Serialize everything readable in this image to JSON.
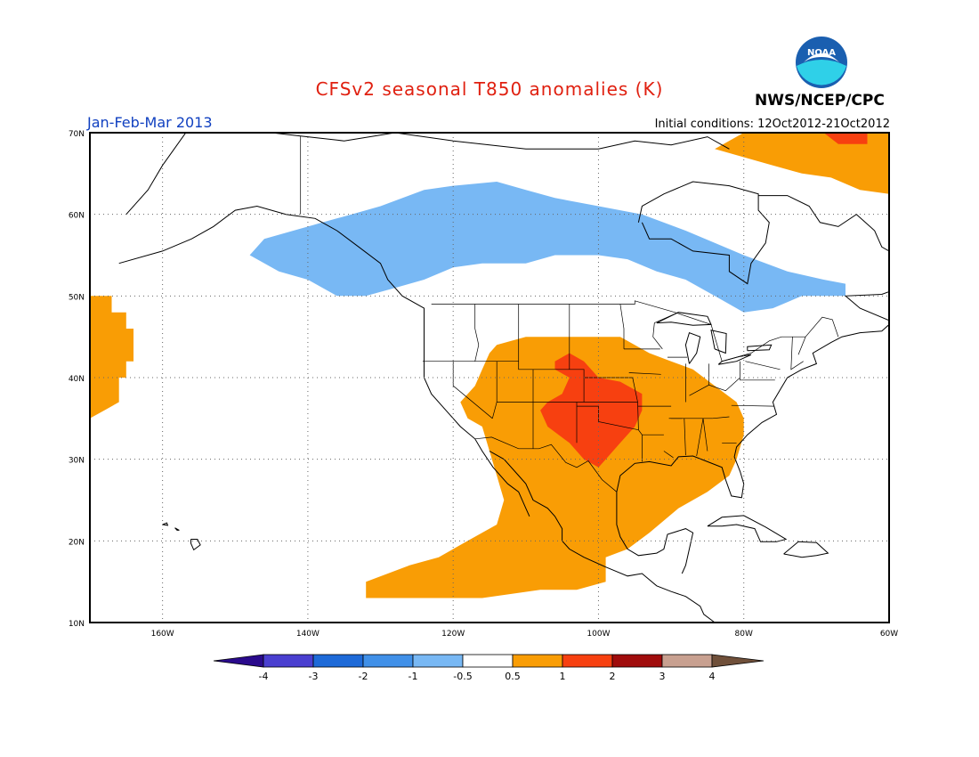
{
  "title": "CFSv2 seasonal T850 anomalies (K)",
  "period": "Jan-Feb-Mar 2013",
  "initial_conditions": "Initial conditions: 12Oct2012-21Oct2012",
  "agency": "NWS/NCEP/CPC",
  "logo_text": "NOAA",
  "colors": {
    "title": "#e02010",
    "period": "#1040c0",
    "lt_m4": "#2a0a8c",
    "m4_m3": "#4a3fd0",
    "m3_m2": "#1e6ad8",
    "m2_m1": "#4090e8",
    "m1_m05": "#78b8f4",
    "neutral": "#ffffff",
    "p05_p1": "#f99d05",
    "p1_p2": "#f74010",
    "p2_p3": "#a00c0c",
    "p3_p4": "#c8a090",
    "gt_p4": "#70503a"
  },
  "map": {
    "lon_range": [
      -170,
      -60
    ],
    "lat_range": [
      10,
      70
    ],
    "lat_ticks": [
      "70N",
      "60N",
      "50N",
      "40N",
      "30N",
      "20N",
      "10N"
    ],
    "lon_ticks": [
      "160W",
      "140W",
      "120W",
      "100W",
      "80W",
      "60W"
    ]
  },
  "colorbar": {
    "labels": [
      "-4",
      "-3",
      "-2",
      "-1",
      "-0.5",
      "0.5",
      "1",
      "2",
      "3",
      "4"
    ]
  },
  "anomaly_regions": [
    {
      "name": "Canada cold anomaly",
      "class": "-1 to -0.5",
      "color": "#78b8f4",
      "outline": [
        [
          -148,
          55
        ],
        [
          -146,
          57
        ],
        [
          -142,
          58
        ],
        [
          -138,
          59
        ],
        [
          -134,
          60
        ],
        [
          -130,
          61
        ],
        [
          -124,
          63
        ],
        [
          -120,
          63.5
        ],
        [
          -114,
          64
        ],
        [
          -110,
          63
        ],
        [
          -106,
          62
        ],
        [
          -100,
          61
        ],
        [
          -94,
          60
        ],
        [
          -88,
          58
        ],
        [
          -84,
          56.5
        ],
        [
          -80,
          55
        ],
        [
          -74,
          53
        ],
        [
          -69,
          52
        ],
        [
          -66,
          51.5
        ],
        [
          -66,
          50
        ],
        [
          -72,
          50
        ],
        [
          -76,
          48.5
        ],
        [
          -80,
          48
        ],
        [
          -84,
          50
        ],
        [
          -88,
          52
        ],
        [
          -92,
          53
        ],
        [
          -96,
          54.5
        ],
        [
          -100,
          55
        ],
        [
          -106,
          55
        ],
        [
          -110,
          54
        ],
        [
          -116,
          54
        ],
        [
          -120,
          53.5
        ],
        [
          -124,
          52
        ],
        [
          -128,
          51
        ],
        [
          -132,
          50
        ],
        [
          -136,
          50
        ],
        [
          -140,
          52
        ],
        [
          -144,
          53
        ]
      ]
    },
    {
      "name": "Pacific warm anomaly",
      "class": "0.5 to 1",
      "color": "#f99d05",
      "outline": [
        [
          -170,
          50
        ],
        [
          -167,
          50
        ],
        [
          -167,
          48
        ],
        [
          -165,
          48
        ],
        [
          -165,
          46
        ],
        [
          -164,
          46
        ],
        [
          -164,
          42
        ],
        [
          -165,
          42
        ],
        [
          -165,
          40
        ],
        [
          -166,
          40
        ],
        [
          -166,
          37
        ],
        [
          -168,
          36
        ],
        [
          -170,
          35
        ]
      ]
    },
    {
      "name": "Arctic Greenland warm anomaly",
      "class": "0.5 to 1",
      "color": "#f99d05",
      "outline": [
        [
          -80,
          70
        ],
        [
          -60,
          70
        ],
        [
          -60,
          62.5
        ],
        [
          -64,
          63
        ],
        [
          -68,
          64.5
        ],
        [
          -72,
          65
        ],
        [
          -76,
          66
        ],
        [
          -80,
          67
        ],
        [
          -84,
          68
        ]
      ]
    },
    {
      "name": "Greenland strong warm anomaly",
      "class": "1 to 2",
      "color": "#f74010",
      "outline": [
        [
          -69,
          70
        ],
        [
          -63,
          70
        ],
        [
          -63,
          68.6
        ],
        [
          -67,
          68.6
        ]
      ]
    },
    {
      "name": "US Mexico warm anomaly",
      "class": "0.5 to 1",
      "color": "#f99d05",
      "outline": [
        [
          -114,
          44
        ],
        [
          -110,
          45
        ],
        [
          -104,
          45
        ],
        [
          -97,
          45
        ],
        [
          -93,
          43
        ],
        [
          -90,
          42
        ],
        [
          -87,
          41
        ],
        [
          -84,
          39
        ],
        [
          -81,
          37
        ],
        [
          -80,
          35
        ],
        [
          -80,
          33
        ],
        [
          -81,
          30
        ],
        [
          -82,
          28
        ],
        [
          -85,
          26
        ],
        [
          -89,
          24
        ],
        [
          -93,
          21
        ],
        [
          -96,
          19
        ],
        [
          -99,
          18
        ],
        [
          -99,
          15
        ],
        [
          -103,
          14
        ],
        [
          -108,
          14
        ],
        [
          -116,
          13
        ],
        [
          -124,
          13
        ],
        [
          -132,
          13
        ],
        [
          -132,
          15
        ],
        [
          -126,
          17
        ],
        [
          -122,
          18
        ],
        [
          -118,
          20
        ],
        [
          -114,
          22
        ],
        [
          -113,
          25
        ],
        [
          -114,
          28
        ],
        [
          -115,
          31
        ],
        [
          -116,
          34
        ],
        [
          -118,
          35
        ],
        [
          -119,
          37
        ],
        [
          -117,
          39
        ],
        [
          -116,
          41
        ],
        [
          -115,
          43
        ]
      ]
    },
    {
      "name": "Central US strong warm anomaly",
      "class": "1 to 2",
      "color": "#f74010",
      "outline": [
        [
          -106,
          42
        ],
        [
          -104,
          43
        ],
        [
          -102,
          42
        ],
        [
          -100,
          40
        ],
        [
          -97,
          39.5
        ],
        [
          -94,
          38
        ],
        [
          -94,
          36
        ],
        [
          -95,
          34
        ],
        [
          -97,
          32
        ],
        [
          -99,
          30
        ],
        [
          -100,
          29
        ],
        [
          -102,
          30
        ],
        [
          -104,
          32
        ],
        [
          -107,
          34
        ],
        [
          -108,
          36
        ],
        [
          -107,
          37
        ],
        [
          -105,
          38
        ],
        [
          -104,
          40
        ],
        [
          -106,
          41
        ]
      ]
    }
  ]
}
